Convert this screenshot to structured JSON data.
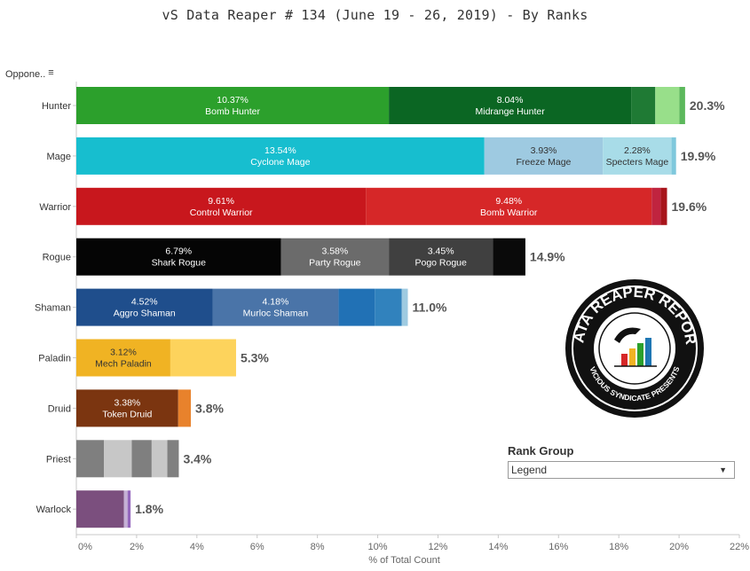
{
  "title": "vS Data Reaper #  134 (June 19 - 26, 2019) - By Ranks",
  "sort_header": {
    "label": "Oppone..",
    "icon": "sort-descending-icon"
  },
  "rank_group": {
    "label": "Rank Group",
    "value": "Legend",
    "icon": "chevron-down-icon"
  },
  "logo": {
    "top_text": "DATA REAPER REPORT",
    "bottom_text": "VICIOUS SYNDICATE PRESENTS"
  },
  "chart_data": {
    "type": "bar",
    "orientation": "horizontal",
    "stacked": true,
    "xlabel": "% of Total Count",
    "xlim": [
      0,
      22
    ],
    "xticks": [
      "0%",
      "2%",
      "4%",
      "6%",
      "8%",
      "10%",
      "12%",
      "14%",
      "16%",
      "18%",
      "20%",
      "22%"
    ],
    "grid": false,
    "categories": [
      "Hunter",
      "Mage",
      "Warrior",
      "Rogue",
      "Shaman",
      "Paladin",
      "Druid",
      "Priest",
      "Warlock"
    ],
    "totals": [
      "20.3%",
      "19.9%",
      "19.6%",
      "14.9%",
      "11.0%",
      "5.3%",
      "3.8%",
      "3.4%",
      "1.8%"
    ],
    "bars": [
      {
        "category": "Hunter",
        "segments": [
          {
            "value": 10.37,
            "label": "10.37%",
            "name": "Bomb Hunter",
            "color": "#2ca02c"
          },
          {
            "value": 8.04,
            "label": "8.04%",
            "name": "Midrange Hunter",
            "color": "#0b6623"
          },
          {
            "value": 0.8,
            "color": "#1f7a34"
          },
          {
            "value": 0.8,
            "color": "#98df8a"
          },
          {
            "value": 0.19,
            "color": "#5cb85c"
          }
        ]
      },
      {
        "category": "Mage",
        "segments": [
          {
            "value": 13.54,
            "label": "13.54%",
            "name": "Cyclone Mage",
            "color": "#17becf"
          },
          {
            "value": 3.93,
            "label": "3.93%",
            "name": "Freeze Mage",
            "color": "#9ecae1"
          },
          {
            "value": 2.28,
            "label": "2.28%",
            "name": "Specters Mage",
            "color": "#a8dce8"
          },
          {
            "value": 0.15,
            "color": "#7fc8dc"
          }
        ]
      },
      {
        "category": "Warrior",
        "segments": [
          {
            "value": 9.61,
            "label": "9.61%",
            "name": "Control Warrior",
            "color": "#c8171d"
          },
          {
            "value": 9.48,
            "label": "9.48%",
            "name": "Bomb Warrior",
            "color": "#d62728"
          },
          {
            "value": 0.3,
            "color": "#c0243f"
          },
          {
            "value": 0.21,
            "color": "#a8141a"
          }
        ]
      },
      {
        "category": "Rogue",
        "segments": [
          {
            "value": 6.79,
            "label": "6.79%",
            "name": "Shark Rogue",
            "color": "#050505"
          },
          {
            "value": 3.58,
            "label": "3.58%",
            "name": "Party Rogue",
            "color": "#6b6b6b"
          },
          {
            "value": 3.45,
            "label": "3.45%",
            "name": "Pogo Rogue",
            "color": "#404040"
          },
          {
            "value": 1.08,
            "color": "#0a0a0a"
          }
        ]
      },
      {
        "category": "Shaman",
        "segments": [
          {
            "value": 4.52,
            "label": "4.52%",
            "name": "Aggro Shaman",
            "color": "#1f4e8c"
          },
          {
            "value": 4.18,
            "label": "4.18%",
            "name": "Murloc Shaman",
            "color": "#4a74a8"
          },
          {
            "value": 1.2,
            "color": "#2171b5"
          },
          {
            "value": 0.9,
            "color": "#3182bd"
          },
          {
            "value": 0.2,
            "color": "#9ecae1"
          }
        ]
      },
      {
        "category": "Paladin",
        "segments": [
          {
            "value": 3.12,
            "label": "3.12%",
            "name": "Mech Paladin",
            "color": "#f0b323"
          },
          {
            "value": 2.18,
            "color": "#fdd35c"
          }
        ]
      },
      {
        "category": "Druid",
        "segments": [
          {
            "value": 3.38,
            "label": "3.38%",
            "name": "Token Druid",
            "color": "#7b3510"
          },
          {
            "value": 0.42,
            "color": "#e8822c"
          }
        ]
      },
      {
        "category": "Priest",
        "segments": [
          {
            "value": 0.92,
            "color": "#7f7f7f"
          },
          {
            "value": 0.92,
            "color": "#c7c7c7"
          },
          {
            "value": 0.66,
            "color": "#7f7f7f"
          },
          {
            "value": 0.52,
            "color": "#c7c7c7"
          },
          {
            "value": 0.38,
            "color": "#808080"
          }
        ]
      },
      {
        "category": "Warlock",
        "segments": [
          {
            "value": 1.58,
            "color": "#7b4f7e"
          },
          {
            "value": 0.12,
            "color": "#c5b0d5"
          },
          {
            "value": 0.1,
            "color": "#9467bd"
          }
        ]
      }
    ]
  }
}
